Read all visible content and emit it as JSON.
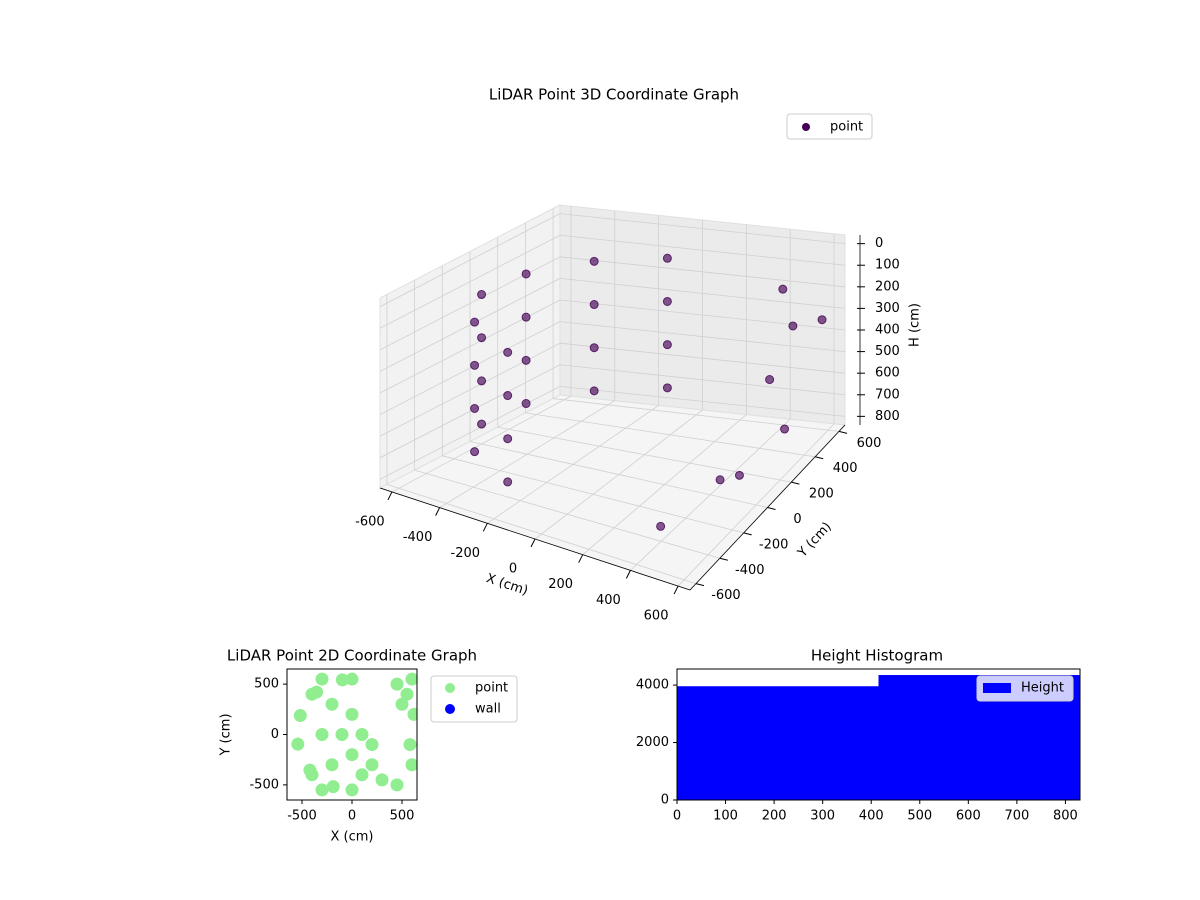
{
  "chart_data": [
    {
      "type": "scatter3d",
      "title": "LiDAR Point 3D Coordinate Graph",
      "xlabel": "X (cm)",
      "ylabel": "Y (cm)",
      "zlabel": "H (cm)",
      "xlim": [
        -650,
        650
      ],
      "ylim": [
        -650,
        650
      ],
      "zlim": [
        -40,
        840
      ],
      "z_inverted": true,
      "xticks": [
        -600,
        -400,
        -200,
        0,
        200,
        400,
        600
      ],
      "yticks": [
        -600,
        -400,
        -200,
        0,
        200,
        400,
        600
      ],
      "zticks": [
        0,
        100,
        200,
        300,
        400,
        500,
        600,
        700,
        800
      ],
      "legend": "upper right",
      "grid": true,
      "series": [
        {
          "name": "point",
          "color": "#440154",
          "x": [
            -96,
            -354,
            -517,
            -542,
            -421,
            -188,
            -96,
            -354,
            -517,
            -542,
            -421,
            -188,
            -96,
            -354,
            -517,
            -542,
            -421,
            -188,
            -96,
            -354,
            -517,
            -542,
            -421,
            -188,
            450,
            550,
            600,
            500,
            620,
            580,
            600,
            450
          ],
          "y": [
            542,
            421,
            188,
            -96,
            -354,
            -517,
            542,
            421,
            188,
            -96,
            -354,
            -517,
            542,
            421,
            188,
            -96,
            -354,
            -517,
            542,
            421,
            188,
            -96,
            -354,
            -517,
            500,
            400,
            550,
            300,
            200,
            -100,
            -300,
            -500
          ],
          "z": [
            100,
            100,
            100,
            100,
            100,
            100,
            300,
            300,
            300,
            300,
            300,
            300,
            500,
            500,
            500,
            500,
            500,
            500,
            700,
            700,
            700,
            700,
            700,
            700,
            150,
            250,
            300,
            450,
            600,
            650,
            550,
            700
          ]
        }
      ]
    },
    {
      "type": "scatter",
      "title": "LiDAR Point 2D Coordinate Graph",
      "xlabel": "X (cm)",
      "ylabel": "Y (cm)",
      "xlim": [
        -650,
        650
      ],
      "ylim": [
        -650,
        650
      ],
      "xticks": [
        -500,
        0,
        500
      ],
      "yticks": [
        -500,
        0,
        500
      ],
      "legend": "outside right",
      "series": [
        {
          "name": "point",
          "color": "#90ee90",
          "x": [
            -96,
            -354,
            -517,
            -542,
            -421,
            -188,
            -300,
            -200,
            -200,
            0,
            0,
            100,
            200,
            -400,
            -400,
            -100,
            100,
            200,
            300,
            -300,
            -300,
            0,
            0,
            450,
            550,
            600,
            500,
            620,
            580,
            600,
            450
          ],
          "y": [
            542,
            421,
            188,
            -96,
            -354,
            -517,
            0,
            300,
            -300,
            200,
            -200,
            -400,
            -300,
            400,
            -400,
            0,
            0,
            -100,
            -450,
            -550,
            550,
            550,
            -550,
            500,
            400,
            550,
            300,
            200,
            -100,
            -300,
            -500
          ]
        },
        {
          "name": "wall",
          "color": "#0000ff",
          "x": [],
          "y": []
        }
      ]
    },
    {
      "type": "histogram",
      "title": "Height Histogram",
      "color": "#0000ff",
      "name": "Height",
      "bins": [
        0,
        415,
        830
      ],
      "counts": [
        3960,
        4350
      ],
      "xlim": [
        0,
        830
      ],
      "ylim": [
        0,
        4560
      ],
      "xticks": [
        0,
        100,
        200,
        300,
        400,
        500,
        600,
        700,
        800
      ],
      "yticks": [
        0,
        2000,
        4000
      ],
      "legend": "upper right"
    }
  ]
}
